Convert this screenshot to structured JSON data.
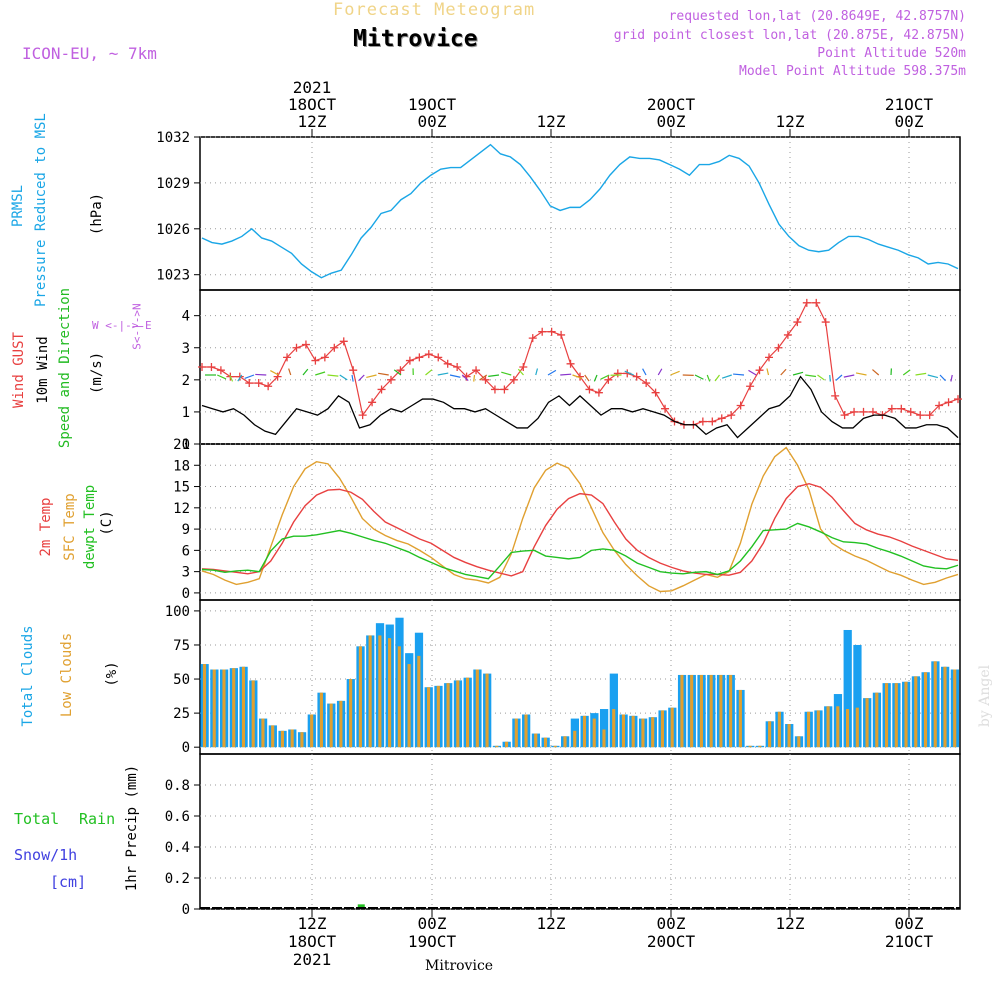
{
  "header": {
    "product_title": "Forecast Meteogram",
    "location": "Mitrovice",
    "model": "ICON-EU, ~ 7km",
    "requested": "requested lon,lat (20.8649E, 42.8757N)",
    "grid_point": "grid point closest lon,lat (20.875E, 42.875N)",
    "point_altitude": "Point Altitude 520m",
    "model_altitude": "Model Point Altitude 598.375m"
  },
  "footer_location": "Mitrovice",
  "credit": "by Angel",
  "colors": {
    "pressure": "#1aa6e6",
    "gust": "#e84040",
    "wind": "#000000",
    "dir": "#22bb22",
    "temp2m": "#e84040",
    "sfc": "#e0a030",
    "dewpt": "#22c022",
    "total_cloud": "#1aa0f0",
    "low_cloud": "#e0a030",
    "rain": "#22c022",
    "snow": "#4040e0",
    "meta": "#c060e0"
  },
  "top_ticks": [
    {
      "line1": "2021",
      "line2": "18OCT",
      "line3": "12Z",
      "idx": 9
    },
    {
      "line1": "",
      "line2": "19OCT",
      "line3": "00Z",
      "idx": 19
    },
    {
      "line1": "",
      "line2": "",
      "line3": "12Z",
      "idx": 29
    },
    {
      "line1": "",
      "line2": "20OCT",
      "line3": "00Z",
      "idx": 39
    },
    {
      "line1": "",
      "line2": "",
      "line3": "12Z",
      "idx": 49
    },
    {
      "line1": "",
      "line2": "21OCT",
      "line3": "00Z",
      "idx": 59
    }
  ],
  "bottom_ticks": [
    {
      "line1": "12Z",
      "line2": "18OCT",
      "line3": "2021",
      "idx": 9
    },
    {
      "line1": "00Z",
      "line2": "19OCT",
      "line3": "",
      "idx": 19
    },
    {
      "line1": "12Z",
      "line2": "",
      "line3": "",
      "idx": 29
    },
    {
      "line1": "00Z",
      "line2": "20OCT",
      "line3": "",
      "idx": 39
    },
    {
      "line1": "12Z",
      "line2": "",
      "line3": "",
      "idx": 49
    },
    {
      "line1": "00Z",
      "line2": "21OCT",
      "line3": "",
      "idx": 59
    }
  ],
  "panel_labels": {
    "pressure": [
      "PRMSL",
      "Pressure Reduced to MSL"
    ],
    "pressure_unit": "(hPa)",
    "wind_gust": "Wind GUST",
    "wind_10m": "10m Wind",
    "wind_dir": "Speed and Direction",
    "wind_unit": "(m/s)",
    "compass_ns": "S<-|->N",
    "compass_we": "W <-|-> E",
    "temp2m": "2m Temp",
    "sfc": "SFC Temp",
    "dewpt": "dewpt Temp",
    "temp_unit": "(C)",
    "total_clouds": "Total Clouds",
    "low_clouds": "Low Clouds",
    "cloud_unit": "(%)",
    "precip": "1hr Precip (mm)",
    "total": "Total",
    "rain": "Rain",
    "snow": "Snow/1h",
    "snow_unit": "[cm]"
  },
  "chart_data": [
    {
      "type": "line",
      "title": "PRMSL Pressure Reduced to MSL",
      "ylabel": "(hPa)",
      "ylim": [
        1022,
        1032
      ],
      "yticks": [
        1023,
        1026,
        1029,
        1032
      ],
      "x_range": [
        0,
        63
      ],
      "series": [
        {
          "name": "PRMSL",
          "values": [
            1025.4,
            1025.1,
            1025.0,
            1025.2,
            1025.5,
            1026.0,
            1025.4,
            1025.2,
            1024.8,
            1024.4,
            1023.7,
            1023.2,
            1022.8,
            1023.1,
            1023.3,
            1024.3,
            1025.4,
            1026.1,
            1027.0,
            1027.2,
            1027.9,
            1028.3,
            1029.0,
            1029.5,
            1029.9,
            1030.0,
            1030.0,
            1030.5,
            1031.0,
            1031.5,
            1030.9,
            1030.7,
            1030.2,
            1029.4,
            1028.5,
            1027.5,
            1027.2,
            1027.4,
            1027.4,
            1027.9,
            1028.6,
            1029.5,
            1030.2,
            1030.7,
            1030.6,
            1030.6,
            1030.5,
            1030.2,
            1029.9,
            1029.5,
            1030.2,
            1030.2,
            1030.4,
            1030.8,
            1030.6,
            1030.1,
            1029.0,
            1027.6,
            1026.3,
            1025.5,
            1024.9,
            1024.6,
            1024.5,
            1024.6,
            1025.1,
            1025.5,
            1025.5,
            1025.3,
            1025.0,
            1024.8,
            1024.6,
            1024.3,
            1024.1,
            1023.7,
            1023.8,
            1023.7,
            1023.4
          ]
        }
      ]
    },
    {
      "type": "line",
      "title": "Wind GUST / 10m Wind Speed and Direction",
      "ylabel": "(m/s)",
      "ylim": [
        0,
        4.8
      ],
      "yticks": [
        0,
        1,
        2,
        3,
        4
      ],
      "series": [
        {
          "name": "Wind GUST",
          "values": [
            2.4,
            2.4,
            2.3,
            2.1,
            2.1,
            1.9,
            1.9,
            1.8,
            2.1,
            2.7,
            3.0,
            3.1,
            2.6,
            2.7,
            3.0,
            3.2,
            2.3,
            0.9,
            1.3,
            1.7,
            2.0,
            2.3,
            2.6,
            2.7,
            2.8,
            2.7,
            2.5,
            2.4,
            2.1,
            2.3,
            2.0,
            1.7,
            1.7,
            2.0,
            2.4,
            3.3,
            3.5,
            3.5,
            3.4,
            2.5,
            2.1,
            1.7,
            1.6,
            2.0,
            2.2,
            2.2,
            2.1,
            1.9,
            1.6,
            1.1,
            0.7,
            0.6,
            0.6,
            0.7,
            0.7,
            0.8,
            0.9,
            1.2,
            1.8,
            2.3,
            2.7,
            3.0,
            3.4,
            3.8,
            4.4,
            4.4,
            3.8,
            1.5,
            0.9,
            1.0,
            1.0,
            1.0,
            0.9,
            1.1,
            1.1,
            1.0,
            0.9,
            0.9,
            1.2,
            1.3,
            1.4
          ]
        },
        {
          "name": "10m Wind",
          "values": [
            1.2,
            1.1,
            1.0,
            1.1,
            0.9,
            0.6,
            0.4,
            0.3,
            0.7,
            1.1,
            1.0,
            0.9,
            1.1,
            1.5,
            1.3,
            0.5,
            0.6,
            0.9,
            1.1,
            1.0,
            1.2,
            1.4,
            1.4,
            1.3,
            1.1,
            1.1,
            1.0,
            1.1,
            0.9,
            0.7,
            0.5,
            0.5,
            0.8,
            1.3,
            1.5,
            1.2,
            1.5,
            1.2,
            0.9,
            1.1,
            1.1,
            1.0,
            1.1,
            1.0,
            0.9,
            0.7,
            0.6,
            0.6,
            0.3,
            0.5,
            0.6,
            0.2,
            0.5,
            0.8,
            1.1,
            1.2,
            1.5,
            2.1,
            1.7,
            1.0,
            0.7,
            0.5,
            0.5,
            0.8,
            0.9,
            0.9,
            0.8,
            0.5,
            0.5,
            0.6,
            0.6,
            0.5,
            0.2
          ]
        }
      ]
    },
    {
      "type": "line",
      "title": "2m Temp / SFC Temp / dewpt Temp",
      "ylabel": "(C)",
      "ylim": [
        -1,
        21
      ],
      "yticks": [
        0,
        3,
        6,
        9,
        12,
        15,
        18,
        21
      ],
      "series": [
        {
          "name": "2m Temp",
          "values": [
            3.4,
            3.3,
            3.1,
            2.9,
            2.7,
            3.0,
            4.5,
            7.0,
            10.0,
            12.3,
            13.8,
            14.5,
            14.6,
            14.2,
            13.2,
            11.5,
            10.0,
            9.2,
            8.4,
            7.6,
            7.0,
            6.0,
            5.0,
            4.3,
            3.7,
            3.2,
            2.8,
            2.4,
            3.0,
            6.5,
            9.5,
            11.8,
            13.3,
            14.0,
            13.8,
            12.6,
            10.0,
            7.6,
            6.0,
            5.0,
            4.2,
            3.6,
            3.1,
            2.8,
            2.6,
            2.6,
            2.5,
            2.9,
            4.5,
            7.0,
            10.5,
            13.3,
            15.0,
            15.4,
            14.9,
            13.5,
            11.6,
            9.8,
            8.9,
            8.3,
            7.9,
            7.3,
            6.6,
            6.0,
            5.4,
            4.8,
            4.6
          ]
        },
        {
          "name": "SFC Temp",
          "values": [
            3.1,
            2.6,
            1.8,
            1.2,
            1.5,
            2.0,
            6.5,
            11.0,
            15.0,
            17.5,
            18.5,
            18.2,
            16.2,
            13.5,
            10.5,
            9.0,
            8.1,
            7.4,
            6.9,
            6.0,
            5.0,
            3.8,
            2.6,
            2.0,
            1.8,
            1.4,
            2.2,
            5.5,
            10.5,
            14.8,
            17.3,
            18.3,
            17.6,
            15.4,
            12.0,
            8.5,
            6.0,
            4.0,
            2.4,
            1.0,
            0.2,
            0.3,
            1.0,
            1.8,
            2.6,
            2.2,
            3.0,
            7.0,
            12.5,
            16.5,
            19.2,
            20.5,
            18.0,
            14.5,
            9.0,
            7.0,
            6.0,
            5.2,
            4.6,
            3.8,
            3.0,
            2.5,
            1.8,
            1.2,
            1.5,
            2.1,
            2.6
          ]
        },
        {
          "name": "dewpt Temp",
          "values": [
            3.3,
            3.2,
            2.9,
            3.1,
            3.2,
            3.0,
            5.9,
            7.6,
            8.0,
            8.0,
            8.2,
            8.5,
            8.8,
            8.4,
            7.9,
            7.4,
            7.0,
            6.4,
            5.8,
            5.0,
            4.3,
            3.6,
            3.1,
            2.6,
            2.3,
            2.0,
            3.8,
            5.7,
            5.9,
            6.0,
            5.2,
            5.0,
            4.8,
            5.0,
            6.0,
            6.2,
            6.0,
            5.2,
            4.2,
            3.6,
            3.0,
            2.8,
            2.7,
            2.9,
            3.0,
            2.6,
            3.1,
            4.5,
            6.5,
            8.8,
            8.9,
            9.0,
            9.8,
            9.3,
            8.6,
            7.8,
            7.2,
            7.1,
            6.9,
            6.3,
            5.8,
            5.2,
            4.5,
            3.8,
            3.5,
            3.4,
            3.9
          ]
        }
      ]
    },
    {
      "type": "bar",
      "title": "Total Clouds / Low Clouds",
      "ylabel": "(%)",
      "ylim": [
        -5,
        108
      ],
      "yticks": [
        0,
        25,
        50,
        75,
        100
      ],
      "series": [
        {
          "name": "Total Clouds",
          "values": [
            61,
            57,
            57,
            58,
            59,
            49,
            21,
            16,
            12,
            13,
            11,
            24,
            40,
            32,
            34,
            50,
            74,
            82,
            91,
            90,
            95,
            69,
            84,
            44,
            45,
            47,
            49,
            51,
            57,
            54,
            1,
            4,
            21,
            24,
            10,
            7,
            1,
            8,
            21,
            23,
            25,
            28,
            54,
            24,
            23,
            21,
            22,
            27,
            29,
            53,
            53,
            53,
            53,
            53,
            53,
            42,
            1,
            1,
            19,
            26,
            17,
            8,
            26,
            27,
            30,
            39,
            86,
            75,
            36,
            40,
            47,
            47,
            48,
            52,
            55,
            63,
            59,
            57
          ]
        },
        {
          "name": "Low Clouds",
          "values": [
            61,
            57,
            57,
            58,
            59,
            49,
            21,
            16,
            12,
            13,
            11,
            24,
            40,
            32,
            34,
            50,
            74,
            82,
            82,
            80,
            74,
            61,
            67,
            44,
            45,
            47,
            49,
            51,
            57,
            54,
            1,
            4,
            21,
            24,
            10,
            7,
            1,
            8,
            12,
            23,
            21,
            13,
            28,
            24,
            23,
            21,
            22,
            27,
            29,
            53,
            53,
            53,
            53,
            53,
            53,
            42,
            1,
            1,
            19,
            26,
            17,
            8,
            26,
            27,
            30,
            30,
            28,
            29,
            36,
            40,
            47,
            47,
            48,
            52,
            55,
            63,
            59,
            57
          ]
        }
      ]
    },
    {
      "type": "bar",
      "title": "1hr Precip (mm)",
      "ylabel": "1hr Precip (mm)",
      "ylim": [
        0,
        1.0
      ],
      "yticks": [
        0,
        0.2,
        0.4,
        0.6,
        0.8
      ],
      "series": [
        {
          "name": "Total Rain",
          "values": [
            {
              "i": 13,
              "v": 0.03
            },
            {
              "i": 14,
              "v": 0.01
            }
          ]
        }
      ]
    }
  ]
}
